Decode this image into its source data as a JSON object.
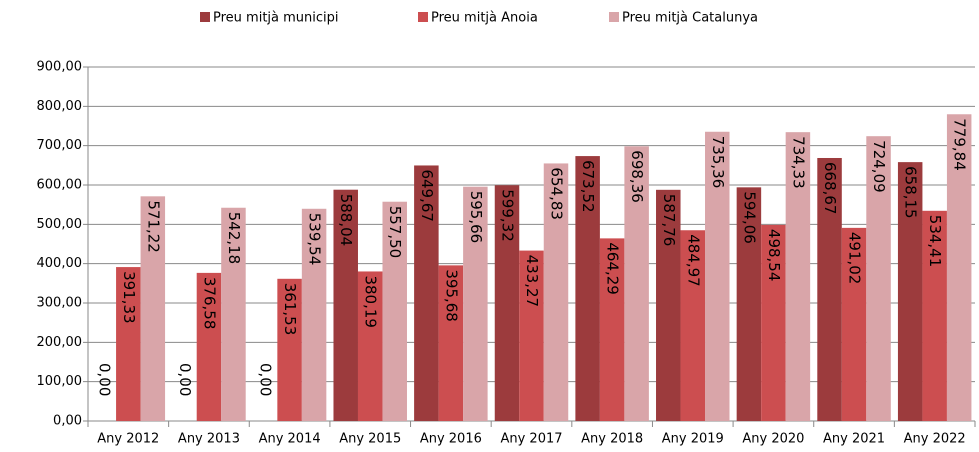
{
  "chart_data": {
    "type": "bar",
    "categories": [
      "Any 2012",
      "Any 2013",
      "Any 2014",
      "Any 2015",
      "Any 2016",
      "Any 2017",
      "Any 2018",
      "Any 2019",
      "Any 2020",
      "Any 2021",
      "Any 2022"
    ],
    "series": [
      {
        "name": "Preu mitjà municipi",
        "color": "#9c3b3d",
        "values": [
          0,
          0,
          0,
          588.04,
          649.67,
          599.32,
          673.52,
          587.76,
          594.06,
          668.67,
          658.15
        ],
        "value_labels": [
          "0,00",
          "0,00",
          "0,00",
          "588,04",
          "649,67",
          "599,32",
          "673,52",
          "587,76",
          "594,06",
          "668,67",
          "658,15"
        ]
      },
      {
        "name": "Preu mitjà Anoia",
        "color": "#cc4e50",
        "values": [
          391.33,
          376.58,
          361.53,
          380.19,
          395.68,
          433.27,
          464.29,
          484.97,
          498.54,
          491.02,
          534.41
        ],
        "value_labels": [
          "391,33",
          "376,58",
          "361,53",
          "380,19",
          "395,68",
          "433,27",
          "464,29",
          "484,97",
          "498,54",
          "491,02",
          "534,41"
        ]
      },
      {
        "name": "Preu mitjà Catalunya",
        "color": "#d9a5a9",
        "values": [
          571.22,
          542.18,
          539.54,
          557.5,
          595.66,
          654.83,
          698.36,
          735.36,
          734.33,
          724.09,
          779.84
        ],
        "value_labels": [
          "571,22",
          "542,18",
          "539,54",
          "557,50",
          "595,66",
          "654,83",
          "698,36",
          "735,36",
          "734,33",
          "724,09",
          "779,84"
        ]
      }
    ],
    "ylim": [
      0,
      900
    ],
    "yticks": [
      {
        "value": 0,
        "label": "0,00"
      },
      {
        "value": 100,
        "label": "100,00"
      },
      {
        "value": 200,
        "label": "200,00"
      },
      {
        "value": 300,
        "label": "300,00"
      },
      {
        "value": 400,
        "label": "400,00"
      },
      {
        "value": 500,
        "label": "500,00"
      },
      {
        "value": 600,
        "label": "600,00"
      },
      {
        "value": 700,
        "label": "700,00"
      },
      {
        "value": 800,
        "label": "800,00"
      },
      {
        "value": 900,
        "label": "900,00"
      }
    ],
    "grid": true,
    "legend": "top"
  }
}
